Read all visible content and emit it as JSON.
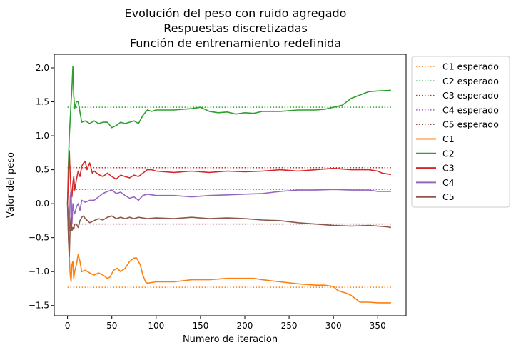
{
  "chart_data": {
    "type": "line",
    "title_lines": [
      "Evolución del peso con ruido agregado",
      "Respuestas discretizadas",
      "Función de entrenamiento redefinida"
    ],
    "xlabel": "Numero de iteracion",
    "ylabel": "Valor del peso",
    "xlim": [
      -15,
      382
    ],
    "ylim": [
      -1.65,
      2.2
    ],
    "xticks": [
      0,
      50,
      100,
      150,
      200,
      250,
      300,
      350
    ],
    "yticks": [
      -1.5,
      -1.0,
      -0.5,
      0.0,
      0.5,
      1.0,
      1.5,
      2.0
    ],
    "ytick_labels": [
      "−1.5",
      "−1.0",
      "−0.5",
      "0.0",
      "0.5",
      "1.0",
      "1.5",
      "2.0"
    ],
    "legend_position": "outside right, top",
    "expected": [
      {
        "name": "C1 esperado",
        "value": -1.23,
        "color": "#ff7f0e",
        "x": [
          0,
          365
        ]
      },
      {
        "name": "C2 esperado",
        "value": 1.42,
        "color": "#2ca02c",
        "x": [
          0,
          365
        ]
      },
      {
        "name": "C3 esperado",
        "value": 0.53,
        "color": "#d62728",
        "x": [
          0,
          365
        ]
      },
      {
        "name": "C4 esperado",
        "value": 0.21,
        "color": "#9467bd",
        "x": [
          0,
          365
        ]
      },
      {
        "name": "C5 esperado",
        "value": -0.3,
        "color": "#8c564b",
        "x": [
          0,
          365
        ]
      }
    ],
    "series": [
      {
        "name": "C1",
        "color": "#ff7f0e",
        "points": [
          [
            0,
            0.0
          ],
          [
            1,
            -0.5
          ],
          [
            2,
            -0.8
          ],
          [
            3,
            -1.05
          ],
          [
            4,
            -1.15
          ],
          [
            5,
            -0.9
          ],
          [
            6,
            -0.85
          ],
          [
            7,
            -1.1
          ],
          [
            8,
            -1.0
          ],
          [
            10,
            -0.9
          ],
          [
            12,
            -0.75
          ],
          [
            14,
            -0.85
          ],
          [
            16,
            -1.0
          ],
          [
            20,
            -0.98
          ],
          [
            25,
            -1.02
          ],
          [
            30,
            -1.05
          ],
          [
            35,
            -1.02
          ],
          [
            40,
            -1.05
          ],
          [
            45,
            -1.1
          ],
          [
            48,
            -1.08
          ],
          [
            52,
            -0.98
          ],
          [
            56,
            -0.95
          ],
          [
            60,
            -1.0
          ],
          [
            65,
            -0.95
          ],
          [
            70,
            -0.85
          ],
          [
            75,
            -0.8
          ],
          [
            78,
            -0.8
          ],
          [
            82,
            -0.9
          ],
          [
            85,
            -1.05
          ],
          [
            88,
            -1.15
          ],
          [
            90,
            -1.17
          ],
          [
            100,
            -1.15
          ],
          [
            120,
            -1.15
          ],
          [
            140,
            -1.12
          ],
          [
            160,
            -1.12
          ],
          [
            180,
            -1.1
          ],
          [
            200,
            -1.1
          ],
          [
            210,
            -1.1
          ],
          [
            220,
            -1.12
          ],
          [
            240,
            -1.15
          ],
          [
            260,
            -1.18
          ],
          [
            280,
            -1.2
          ],
          [
            290,
            -1.2
          ],
          [
            300,
            -1.22
          ],
          [
            305,
            -1.28
          ],
          [
            315,
            -1.32
          ],
          [
            320,
            -1.35
          ],
          [
            325,
            -1.4
          ],
          [
            330,
            -1.45
          ],
          [
            340,
            -1.45
          ],
          [
            350,
            -1.46
          ],
          [
            365,
            -1.46
          ]
        ]
      },
      {
        "name": "C2",
        "color": "#2ca02c",
        "points": [
          [
            0,
            0.0
          ],
          [
            1,
            0.6
          ],
          [
            2,
            1.0
          ],
          [
            3,
            1.25
          ],
          [
            4,
            1.5
          ],
          [
            5,
            1.7
          ],
          [
            6,
            2.02
          ],
          [
            7,
            1.6
          ],
          [
            8,
            1.4
          ],
          [
            10,
            1.5
          ],
          [
            12,
            1.5
          ],
          [
            14,
            1.35
          ],
          [
            16,
            1.2
          ],
          [
            20,
            1.22
          ],
          [
            25,
            1.18
          ],
          [
            30,
            1.22
          ],
          [
            35,
            1.18
          ],
          [
            40,
            1.2
          ],
          [
            45,
            1.2
          ],
          [
            50,
            1.12
          ],
          [
            55,
            1.15
          ],
          [
            60,
            1.2
          ],
          [
            65,
            1.18
          ],
          [
            70,
            1.2
          ],
          [
            75,
            1.22
          ],
          [
            80,
            1.18
          ],
          [
            85,
            1.3
          ],
          [
            90,
            1.38
          ],
          [
            95,
            1.36
          ],
          [
            100,
            1.38
          ],
          [
            120,
            1.38
          ],
          [
            140,
            1.4
          ],
          [
            150,
            1.42
          ],
          [
            160,
            1.36
          ],
          [
            170,
            1.34
          ],
          [
            180,
            1.35
          ],
          [
            190,
            1.32
          ],
          [
            200,
            1.34
          ],
          [
            210,
            1.33
          ],
          [
            220,
            1.36
          ],
          [
            240,
            1.36
          ],
          [
            260,
            1.38
          ],
          [
            280,
            1.38
          ],
          [
            290,
            1.39
          ],
          [
            300,
            1.42
          ],
          [
            310,
            1.45
          ],
          [
            320,
            1.55
          ],
          [
            330,
            1.6
          ],
          [
            340,
            1.65
          ],
          [
            350,
            1.66
          ],
          [
            365,
            1.67
          ]
        ]
      },
      {
        "name": "C3",
        "color": "#d62728",
        "points": [
          [
            0,
            0.0
          ],
          [
            1,
            0.4
          ],
          [
            2,
            0.78
          ],
          [
            3,
            0.4
          ],
          [
            4,
            0.2
          ],
          [
            5,
            0.1
          ],
          [
            6,
            0.3
          ],
          [
            7,
            0.4
          ],
          [
            8,
            0.2
          ],
          [
            10,
            0.35
          ],
          [
            12,
            0.48
          ],
          [
            14,
            0.4
          ],
          [
            16,
            0.55
          ],
          [
            18,
            0.6
          ],
          [
            20,
            0.62
          ],
          [
            22,
            0.5
          ],
          [
            25,
            0.6
          ],
          [
            28,
            0.45
          ],
          [
            30,
            0.48
          ],
          [
            35,
            0.43
          ],
          [
            40,
            0.4
          ],
          [
            45,
            0.45
          ],
          [
            50,
            0.4
          ],
          [
            55,
            0.36
          ],
          [
            60,
            0.42
          ],
          [
            65,
            0.4
          ],
          [
            70,
            0.38
          ],
          [
            75,
            0.42
          ],
          [
            80,
            0.4
          ],
          [
            85,
            0.45
          ],
          [
            90,
            0.5
          ],
          [
            95,
            0.5
          ],
          [
            100,
            0.48
          ],
          [
            120,
            0.46
          ],
          [
            140,
            0.48
          ],
          [
            160,
            0.46
          ],
          [
            180,
            0.48
          ],
          [
            200,
            0.47
          ],
          [
            220,
            0.48
          ],
          [
            240,
            0.5
          ],
          [
            260,
            0.48
          ],
          [
            280,
            0.5
          ],
          [
            300,
            0.52
          ],
          [
            320,
            0.5
          ],
          [
            340,
            0.5
          ],
          [
            350,
            0.48
          ],
          [
            355,
            0.45
          ],
          [
            365,
            0.43
          ]
        ]
      },
      {
        "name": "C4",
        "color": "#9467bd",
        "points": [
          [
            0,
            0.0
          ],
          [
            1,
            -0.2
          ],
          [
            2,
            -0.4
          ],
          [
            3,
            0.1
          ],
          [
            4,
            0.2
          ],
          [
            5,
            -0.3
          ],
          [
            6,
            0.0
          ],
          [
            7,
            -0.1
          ],
          [
            8,
            -0.15
          ],
          [
            10,
            -0.05
          ],
          [
            12,
            0.0
          ],
          [
            14,
            -0.1
          ],
          [
            16,
            0.05
          ],
          [
            20,
            0.02
          ],
          [
            25,
            0.05
          ],
          [
            30,
            0.05
          ],
          [
            35,
            0.1
          ],
          [
            40,
            0.15
          ],
          [
            45,
            0.18
          ],
          [
            50,
            0.2
          ],
          [
            55,
            0.15
          ],
          [
            60,
            0.17
          ],
          [
            65,
            0.12
          ],
          [
            70,
            0.08
          ],
          [
            75,
            0.1
          ],
          [
            80,
            0.05
          ],
          [
            85,
            0.12
          ],
          [
            90,
            0.14
          ],
          [
            100,
            0.12
          ],
          [
            120,
            0.12
          ],
          [
            140,
            0.1
          ],
          [
            160,
            0.12
          ],
          [
            180,
            0.13
          ],
          [
            200,
            0.14
          ],
          [
            220,
            0.15
          ],
          [
            240,
            0.18
          ],
          [
            260,
            0.2
          ],
          [
            280,
            0.2
          ],
          [
            300,
            0.21
          ],
          [
            320,
            0.2
          ],
          [
            340,
            0.2
          ],
          [
            350,
            0.18
          ],
          [
            365,
            0.18
          ]
        ]
      },
      {
        "name": "C5",
        "color": "#8c564b",
        "points": [
          [
            0,
            0.0
          ],
          [
            1,
            -0.5
          ],
          [
            2,
            -0.78
          ],
          [
            3,
            -0.3
          ],
          [
            4,
            -0.2
          ],
          [
            5,
            -0.4
          ],
          [
            6,
            -0.35
          ],
          [
            7,
            -0.38
          ],
          [
            8,
            -0.3
          ],
          [
            10,
            -0.3
          ],
          [
            12,
            -0.35
          ],
          [
            14,
            -0.25
          ],
          [
            16,
            -0.2
          ],
          [
            18,
            -0.18
          ],
          [
            20,
            -0.22
          ],
          [
            25,
            -0.28
          ],
          [
            30,
            -0.25
          ],
          [
            35,
            -0.22
          ],
          [
            40,
            -0.24
          ],
          [
            45,
            -0.2
          ],
          [
            50,
            -0.18
          ],
          [
            55,
            -0.22
          ],
          [
            60,
            -0.2
          ],
          [
            65,
            -0.22
          ],
          [
            70,
            -0.2
          ],
          [
            75,
            -0.22
          ],
          [
            80,
            -0.2
          ],
          [
            90,
            -0.22
          ],
          [
            100,
            -0.21
          ],
          [
            120,
            -0.22
          ],
          [
            140,
            -0.2
          ],
          [
            160,
            -0.22
          ],
          [
            180,
            -0.21
          ],
          [
            200,
            -0.22
          ],
          [
            220,
            -0.24
          ],
          [
            240,
            -0.25
          ],
          [
            260,
            -0.28
          ],
          [
            280,
            -0.3
          ],
          [
            300,
            -0.32
          ],
          [
            320,
            -0.33
          ],
          [
            340,
            -0.32
          ],
          [
            350,
            -0.33
          ],
          [
            360,
            -0.34
          ],
          [
            365,
            -0.35
          ]
        ]
      }
    ]
  }
}
